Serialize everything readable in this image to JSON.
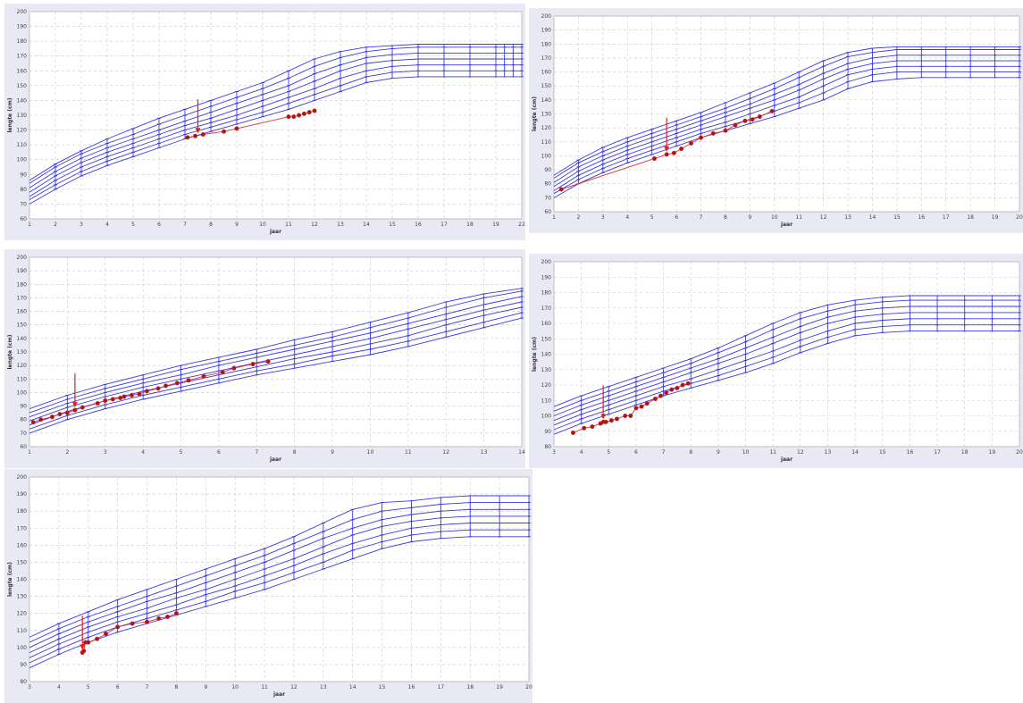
{
  "chart_data": [
    {
      "type": "line",
      "xlabel": "jaar",
      "ylabel": "lengte (cm)",
      "xlim": [
        1,
        22
      ],
      "ylim": [
        60,
        200
      ],
      "xticks": [
        "1",
        "2",
        "3",
        "4",
        "5",
        "6",
        "7",
        "8",
        "9",
        "10",
        "11",
        "12",
        "13",
        "14",
        "15",
        "16",
        "17",
        "18",
        "19",
        "22"
      ],
      "yticks": [
        "60",
        "70",
        "80",
        "90",
        "100",
        "110",
        "120",
        "130",
        "140",
        "150",
        "160",
        "170",
        "180",
        "190",
        "200"
      ],
      "grid": true,
      "reference_x": [
        1,
        2,
        3,
        4,
        5,
        6,
        7,
        8,
        9,
        10,
        11,
        12,
        13,
        14,
        15,
        16,
        17,
        18,
        19,
        20,
        21,
        22
      ],
      "reference_centiles": [
        [
          70,
          80,
          89,
          96,
          102,
          108,
          114,
          119,
          124,
          129,
          134,
          140,
          146,
          152,
          155,
          156,
          156,
          156,
          156,
          156,
          156,
          156
        ],
        [
          73,
          83,
          92,
          99,
          105,
          111,
          117,
          122,
          127,
          132,
          138,
          144,
          150,
          156,
          159,
          160,
          160,
          160,
          160,
          160,
          160,
          160
        ],
        [
          75,
          86,
          95,
          102,
          108,
          114,
          120,
          125,
          130,
          136,
          142,
          148,
          155,
          160,
          163,
          164,
          164,
          164,
          164,
          164,
          164,
          164
        ],
        [
          78,
          89,
          98,
          105,
          111,
          117,
          123,
          128,
          134,
          140,
          146,
          153,
          160,
          165,
          167,
          168,
          168,
          168,
          168,
          168,
          168,
          168
        ],
        [
          81,
          92,
          101,
          108,
          114,
          120,
          126,
          132,
          138,
          144,
          150,
          158,
          164,
          169,
          171,
          172,
          172,
          172,
          172,
          172,
          172,
          172
        ],
        [
          84,
          95,
          104,
          111,
          117,
          124,
          130,
          136,
          142,
          148,
          155,
          163,
          169,
          173,
          175,
          176,
          176,
          176,
          176,
          176,
          176,
          176
        ],
        [
          86,
          97,
          106,
          114,
          121,
          128,
          134,
          140,
          146,
          152,
          160,
          168,
          173,
          176,
          177,
          178,
          178,
          178,
          178,
          178,
          178,
          178
        ]
      ],
      "observations": {
        "x": [
          7.1,
          7.4,
          7.7,
          8.5,
          9.0,
          11.0,
          11.2,
          11.4,
          11.6,
          11.8,
          12.0
        ],
        "y": [
          115,
          116,
          117,
          119,
          121,
          129,
          129,
          130,
          131,
          132,
          133
        ]
      },
      "arrow_x": 7.5
    },
    {
      "type": "line",
      "xlabel": "jaar",
      "ylabel": "lengte (cm)",
      "xlim": [
        1,
        20
      ],
      "ylim": [
        60,
        200
      ],
      "xticks": [
        "1",
        "2",
        "3",
        "4",
        "5",
        "6",
        "7",
        "8",
        "9",
        "10",
        "11",
        "12",
        "13",
        "14",
        "15",
        "16",
        "17",
        "18",
        "19",
        "20"
      ],
      "yticks": [
        "60",
        "70",
        "80",
        "90",
        "100",
        "110",
        "120",
        "130",
        "140",
        "150",
        "160",
        "170",
        "180",
        "190",
        "200"
      ],
      "grid": true,
      "reference_x": [
        1,
        2,
        3,
        4,
        5,
        6,
        7,
        8,
        9,
        10,
        11,
        12,
        13,
        14,
        15,
        16,
        17,
        18,
        19,
        20
      ],
      "reference_centiles": [
        [
          70,
          80,
          88,
          95,
          101,
          107,
          113,
          118,
          123,
          128,
          134,
          140,
          148,
          153,
          155,
          156,
          156,
          156,
          156,
          156
        ],
        [
          73,
          83,
          91,
          98,
          104,
          110,
          116,
          121,
          126,
          132,
          138,
          145,
          153,
          158,
          160,
          160,
          160,
          160,
          160,
          160
        ],
        [
          75,
          86,
          94,
          101,
          107,
          113,
          119,
          124,
          130,
          136,
          142,
          150,
          158,
          162,
          164,
          164,
          164,
          164,
          164,
          164
        ],
        [
          78,
          89,
          97,
          104,
          110,
          116,
          122,
          128,
          134,
          140,
          147,
          155,
          162,
          166,
          168,
          168,
          168,
          168,
          168,
          168
        ],
        [
          81,
          92,
          100,
          107,
          113,
          119,
          125,
          131,
          137,
          144,
          151,
          159,
          166,
          170,
          172,
          172,
          172,
          172,
          172,
          172
        ],
        [
          84,
          95,
          103,
          110,
          116,
          122,
          128,
          134,
          141,
          148,
          156,
          164,
          171,
          174,
          176,
          176,
          176,
          176,
          176,
          176
        ],
        [
          86,
          97,
          106,
          113,
          119,
          125,
          131,
          138,
          145,
          152,
          160,
          168,
          174,
          177,
          178,
          178,
          178,
          178,
          178,
          178
        ]
      ],
      "observations": {
        "x": [
          1.3,
          5.1,
          5.6,
          5.9,
          6.2,
          6.6,
          7.0,
          7.5,
          8.0,
          8.4,
          8.8,
          9.1,
          9.4,
          9.9
        ],
        "y": [
          76,
          98,
          101,
          102,
          105,
          109,
          113,
          116,
          118,
          122,
          125,
          126,
          128,
          132
        ]
      },
      "arrow_x": 5.6
    },
    {
      "type": "line",
      "xlabel": "jaar",
      "ylabel": "lengte (cm)",
      "xlim": [
        1,
        14
      ],
      "ylim": [
        60,
        200
      ],
      "xticks": [
        "1",
        "2",
        "3",
        "4",
        "5",
        "6",
        "7",
        "8",
        "9",
        "10",
        "11",
        "12",
        "13",
        "14"
      ],
      "yticks": [
        "60",
        "70",
        "80",
        "90",
        "100",
        "110",
        "120",
        "130",
        "140",
        "150",
        "160",
        "170",
        "180",
        "190",
        "200"
      ],
      "grid": true,
      "reference_x": [
        1,
        2,
        3,
        4,
        5,
        6,
        7,
        8,
        9,
        10,
        11,
        12,
        13,
        14
      ],
      "reference_centiles": [
        [
          70,
          80,
          88,
          95,
          101,
          107,
          113,
          118,
          123,
          128,
          134,
          141,
          148,
          155
        ],
        [
          73,
          83,
          91,
          98,
          104,
          110,
          116,
          121,
          127,
          132,
          138,
          145,
          152,
          159
        ],
        [
          76,
          86,
          94,
          101,
          107,
          113,
          119,
          125,
          130,
          136,
          142,
          150,
          157,
          163
        ],
        [
          79,
          89,
          97,
          104,
          110,
          116,
          122,
          128,
          134,
          140,
          147,
          154,
          161,
          167
        ],
        [
          82,
          92,
          100,
          107,
          113,
          120,
          126,
          132,
          138,
          144,
          151,
          158,
          165,
          171
        ],
        [
          85,
          95,
          103,
          110,
          117,
          123,
          129,
          135,
          141,
          148,
          155,
          163,
          170,
          175
        ],
        [
          88,
          98,
          106,
          113,
          120,
          126,
          132,
          139,
          145,
          152,
          159,
          167,
          173,
          177
        ]
      ],
      "observations": {
        "x": [
          1.1,
          1.3,
          1.6,
          1.8,
          2.0,
          2.2,
          2.4,
          2.8,
          3.0,
          3.2,
          3.4,
          3.5,
          3.7,
          3.9,
          4.1,
          4.4,
          4.6,
          4.9,
          5.2,
          5.6,
          6.1,
          6.4,
          6.9,
          7.3
        ],
        "y": [
          78,
          80,
          82,
          84,
          85,
          87,
          89,
          92,
          94,
          95,
          96,
          97,
          98,
          99,
          101,
          103,
          105,
          107,
          109,
          112,
          115,
          118,
          121,
          123
        ]
      },
      "arrow_x": 2.2
    },
    {
      "type": "line",
      "xlabel": "jaar",
      "ylabel": "lengte (cm)",
      "xlim": [
        3,
        20
      ],
      "ylim": [
        80,
        200
      ],
      "xticks": [
        "3",
        "4",
        "5",
        "6",
        "7",
        "8",
        "9",
        "10",
        "11",
        "12",
        "13",
        "14",
        "15",
        "16",
        "17",
        "18",
        "19",
        "20"
      ],
      "yticks": [
        "80",
        "90",
        "100",
        "110",
        "120",
        "130",
        "140",
        "150",
        "160",
        "170",
        "180",
        "190",
        "200"
      ],
      "grid": true,
      "reference_x": [
        3,
        4,
        5,
        6,
        7,
        8,
        9,
        10,
        11,
        12,
        13,
        14,
        15,
        16,
        17,
        18,
        19,
        20
      ],
      "reference_centiles": [
        [
          88,
          95,
          101,
          107,
          113,
          118,
          123,
          128,
          134,
          141,
          147,
          152,
          154,
          155,
          155,
          155,
          155,
          155
        ],
        [
          91,
          98,
          104,
          110,
          116,
          121,
          126,
          132,
          138,
          145,
          151,
          156,
          158,
          159,
          159,
          159,
          159,
          159
        ],
        [
          94,
          101,
          107,
          113,
          119,
          124,
          130,
          136,
          142,
          149,
          155,
          160,
          162,
          163,
          163,
          163,
          163,
          163
        ],
        [
          97,
          104,
          110,
          116,
          122,
          128,
          134,
          140,
          147,
          154,
          160,
          164,
          166,
          167,
          167,
          167,
          167,
          167
        ],
        [
          100,
          107,
          113,
          119,
          125,
          131,
          137,
          144,
          151,
          158,
          164,
          168,
          170,
          171,
          171,
          171,
          171,
          171
        ],
        [
          103,
          110,
          116,
          122,
          128,
          134,
          141,
          148,
          156,
          163,
          168,
          172,
          174,
          175,
          175,
          175,
          175,
          175
        ],
        [
          106,
          113,
          119,
          125,
          131,
          137,
          144,
          152,
          160,
          167,
          172,
          175,
          177,
          178,
          178,
          178,
          178,
          178
        ]
      ],
      "observations": {
        "x": [
          3.7,
          4.1,
          4.4,
          4.7,
          4.8,
          4.9,
          5.1,
          5.3,
          5.6,
          5.8,
          6.0,
          6.2,
          6.4,
          6.7,
          6.9,
          7.1,
          7.3,
          7.5,
          7.7,
          7.9
        ],
        "y": [
          89,
          92,
          93,
          95,
          96,
          96,
          97,
          98,
          100,
          100,
          105,
          106,
          108,
          111,
          113,
          115,
          117,
          118,
          120,
          121
        ]
      },
      "arrow_x": 4.8
    },
    {
      "type": "line",
      "xlabel": "jaar",
      "ylabel": "lengte (cm)",
      "xlim": [
        3,
        20
      ],
      "ylim": [
        80,
        200
      ],
      "xticks": [
        "3",
        "4",
        "5",
        "6",
        "7",
        "8",
        "9",
        "10",
        "11",
        "12",
        "13",
        "14",
        "15",
        "16",
        "17",
        "18",
        "19",
        "20"
      ],
      "yticks": [
        "80",
        "90",
        "100",
        "110",
        "120",
        "130",
        "140",
        "150",
        "160",
        "170",
        "180",
        "190",
        "200"
      ],
      "grid": true,
      "reference_x": [
        3,
        4,
        5,
        6,
        7,
        8,
        9,
        10,
        11,
        12,
        13,
        14,
        15,
        16,
        17,
        18,
        19,
        20
      ],
      "reference_centiles": [
        [
          88,
          96,
          103,
          109,
          114,
          119,
          124,
          129,
          134,
          140,
          146,
          152,
          158,
          162,
          164,
          165,
          165,
          165
        ],
        [
          91,
          99,
          106,
          112,
          117,
          122,
          127,
          133,
          138,
          144,
          150,
          157,
          162,
          166,
          168,
          169,
          169,
          169
        ],
        [
          94,
          102,
          109,
          115,
          120,
          125,
          131,
          136,
          142,
          148,
          155,
          161,
          166,
          170,
          172,
          173,
          173,
          173
        ],
        [
          97,
          105,
          112,
          118,
          123,
          129,
          134,
          140,
          146,
          152,
          159,
          166,
          171,
          174,
          176,
          177,
          177,
          177
        ],
        [
          100,
          108,
          115,
          121,
          127,
          132,
          138,
          144,
          150,
          157,
          164,
          170,
          175,
          178,
          180,
          181,
          181,
          181
        ],
        [
          103,
          111,
          118,
          124,
          130,
          136,
          142,
          148,
          154,
          161,
          168,
          175,
          180,
          182,
          184,
          185,
          185,
          185
        ],
        [
          106,
          114,
          121,
          128,
          134,
          140,
          146,
          152,
          158,
          165,
          173,
          181,
          185,
          186,
          188,
          189,
          189,
          189
        ]
      ],
      "observations": {
        "x": [
          4.8,
          4.85,
          4.9,
          5.0,
          5.3,
          5.6,
          6.0,
          6.5,
          7.0,
          7.4,
          7.7,
          8.0
        ],
        "y": [
          97,
          98,
          103,
          103,
          105,
          108,
          112,
          114,
          115,
          117,
          118,
          120
        ]
      },
      "arrow_x": 4.8
    }
  ]
}
